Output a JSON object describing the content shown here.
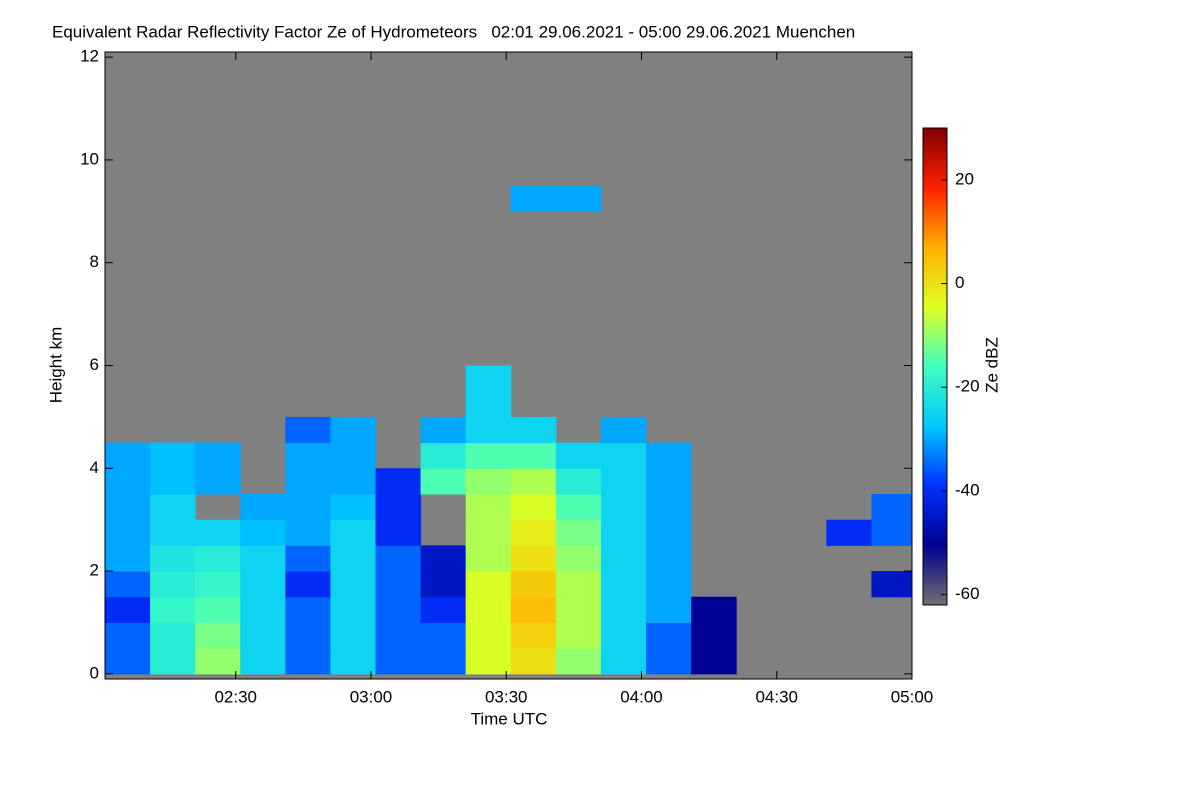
{
  "chart_data": {
    "type": "heatmap",
    "title": "Equivalent Radar Reflectivity Factor Ze of Hydrometeors   02:01 29.06.2021 - 05:00 29.06.2021 Muenchen",
    "x_label": "Time UTC",
    "y_label": "Height km",
    "colorbar_label": "Ze dBZ",
    "xlim": [
      121,
      300
    ],
    "xticks": [
      {
        "value": 150,
        "label": "02:30"
      },
      {
        "value": 180,
        "label": "03:00"
      },
      {
        "value": 210,
        "label": "03:30"
      },
      {
        "value": 240,
        "label": "04:00"
      },
      {
        "value": 270,
        "label": "04:30"
      },
      {
        "value": 300,
        "label": "05:00"
      }
    ],
    "ylim": [
      -0.1,
      12.1
    ],
    "yticks": [
      0,
      2,
      4,
      6,
      8,
      10,
      12
    ],
    "zlim": [
      -62,
      30
    ],
    "zticks": [
      -60,
      -40,
      -20,
      0,
      20
    ],
    "colormap": [
      "#707070",
      "#000090",
      "#0030ff",
      "#00c8ff",
      "#40ffc0",
      "#e0ff20",
      "#ffb000",
      "#ff2000",
      "#800000"
    ],
    "x": [
      121,
      131,
      141,
      151,
      161,
      171,
      181,
      191,
      201,
      211,
      221,
      231,
      241,
      251,
      261,
      271,
      281,
      291
    ],
    "dx": 10,
    "y": [
      0,
      0.5,
      1.0,
      1.5,
      2.0,
      2.5,
      3.0,
      3.5,
      4.0,
      4.5,
      5.0,
      5.5,
      9.0
    ],
    "dy": 0.5,
    "values": [
      [
        -35,
        -20,
        -10,
        -25,
        -35,
        -25,
        -35,
        -35,
        -5,
        0,
        -10,
        -25,
        -35,
        -50,
        null,
        null,
        null,
        null
      ],
      [
        -35,
        -20,
        -12,
        -25,
        -35,
        -25,
        -35,
        -35,
        -5,
        2,
        -8,
        -25,
        -35,
        -50,
        null,
        null,
        null,
        null
      ],
      [
        -40,
        -18,
        -15,
        -25,
        -35,
        -25,
        -35,
        -40,
        -5,
        5,
        -8,
        -25,
        -30,
        -50,
        null,
        null,
        null,
        null
      ],
      [
        -35,
        -20,
        -18,
        -25,
        -40,
        -25,
        -35,
        -45,
        -5,
        3,
        -8,
        -25,
        -30,
        null,
        null,
        null,
        null,
        -45
      ],
      [
        -30,
        -22,
        -20,
        -25,
        -35,
        -25,
        -35,
        -45,
        -8,
        0,
        -10,
        -25,
        -30,
        null,
        null,
        null,
        null,
        null
      ],
      [
        -30,
        -25,
        -25,
        -28,
        -30,
        -25,
        -40,
        null,
        -8,
        -2,
        -12,
        -25,
        -30,
        null,
        null,
        null,
        -40,
        -35
      ],
      [
        -30,
        -25,
        null,
        -30,
        -30,
        -28,
        -40,
        null,
        -8,
        -5,
        -15,
        -25,
        -30,
        null,
        null,
        null,
        null,
        -35
      ],
      [
        -30,
        -28,
        -30,
        null,
        -30,
        -30,
        -40,
        -15,
        -10,
        -8,
        -20,
        -25,
        -30,
        null,
        null,
        null,
        null,
        null
      ],
      [
        -30,
        -28,
        -30,
        null,
        -30,
        -30,
        null,
        -20,
        -15,
        -15,
        -25,
        -25,
        -30,
        null,
        null,
        null,
        null,
        null
      ],
      [
        null,
        null,
        null,
        null,
        -35,
        -30,
        null,
        -30,
        -25,
        -25,
        null,
        -30,
        null,
        null,
        null,
        null,
        null,
        null
      ],
      [
        null,
        null,
        null,
        null,
        null,
        null,
        null,
        null,
        -25,
        null,
        null,
        null,
        null,
        null,
        null,
        null,
        null,
        null
      ],
      [
        null,
        null,
        null,
        null,
        null,
        null,
        null,
        null,
        -25,
        null,
        null,
        null,
        null,
        null,
        null,
        null,
        null,
        null
      ],
      [
        null,
        null,
        null,
        null,
        null,
        null,
        null,
        null,
        null,
        -30,
        -30,
        null,
        null,
        null,
        null,
        null,
        null,
        null
      ]
    ]
  }
}
